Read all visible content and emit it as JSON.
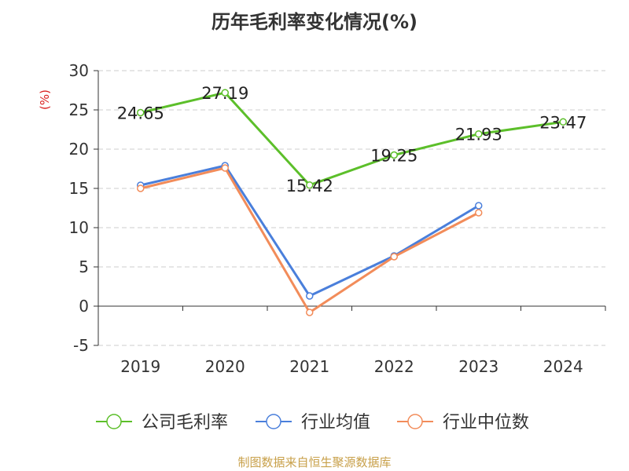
{
  "chart_data": {
    "type": "line",
    "title": "历年毛利率变化情况(%)",
    "ylabel": "(%)",
    "xlabel": "",
    "categories": [
      "2019",
      "2020",
      "2021",
      "2022",
      "2023",
      "2024"
    ],
    "ylim": [
      -5,
      30
    ],
    "yticks": [
      30,
      25,
      20,
      15,
      10,
      5,
      0,
      -5
    ],
    "grid": true,
    "legend_position": "bottom",
    "series": [
      {
        "name": "公司毛利率",
        "color": "#5cbf2a",
        "values": [
          24.65,
          27.19,
          15.42,
          19.25,
          21.93,
          23.47
        ],
        "labels": [
          "24.65",
          "27.19",
          "15.42",
          "19.25",
          "21.93",
          "23.47"
        ]
      },
      {
        "name": "行业均值",
        "color": "#4a7fdb",
        "values": [
          15.4,
          17.9,
          1.3,
          6.4,
          12.8,
          null
        ]
      },
      {
        "name": "行业中位数",
        "color": "#f28c5a",
        "values": [
          15.0,
          17.6,
          -0.8,
          6.3,
          11.9,
          null
        ]
      }
    ]
  },
  "footer": "制图数据来自恒生聚源数据库"
}
